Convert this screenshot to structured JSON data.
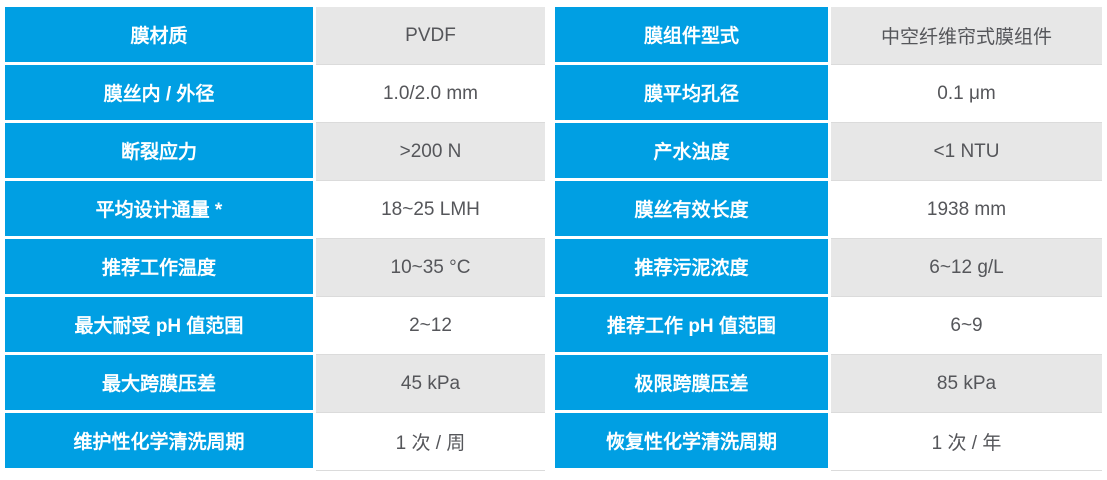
{
  "colors": {
    "accent_blue": "#009FE3",
    "value_row_gray": "#E7E7E7",
    "value_text": "#55565A",
    "row_divider": "#DBDBDB"
  },
  "table": {
    "rows": [
      {
        "c0": "膜材质",
        "c1": "PVDF",
        "c2": "膜组件型式",
        "c3": "中空纤维帘式膜组件"
      },
      {
        "c0": "膜丝内 / 外径",
        "c1": "1.0/2.0 mm",
        "c2": "膜平均孔径",
        "c3": "0.1 μm"
      },
      {
        "c0": "断裂应力",
        "c1": ">200 N",
        "c2": "产水浊度",
        "c3": "<1 NTU"
      },
      {
        "c0": "平均设计通量 *",
        "c1": "18~25 LMH",
        "c2": "膜丝有效长度",
        "c3": "1938 mm"
      },
      {
        "c0": "推荐工作温度",
        "c1": "10~35 °C",
        "c2": "推荐污泥浓度",
        "c3": "6~12 g/L"
      },
      {
        "c0": "最大耐受 pH 值范围",
        "c1": "2~12",
        "c2": "推荐工作 pH 值范围",
        "c3": "6~9"
      },
      {
        "c0": "最大跨膜压差",
        "c1": "45 kPa",
        "c2": "极限跨膜压差",
        "c3": "85 kPa"
      },
      {
        "c0": "维护性化学清洗周期",
        "c1": "1 次 / 周",
        "c2": "恢复性化学清洗周期",
        "c3": "1 次 / 年"
      }
    ]
  }
}
